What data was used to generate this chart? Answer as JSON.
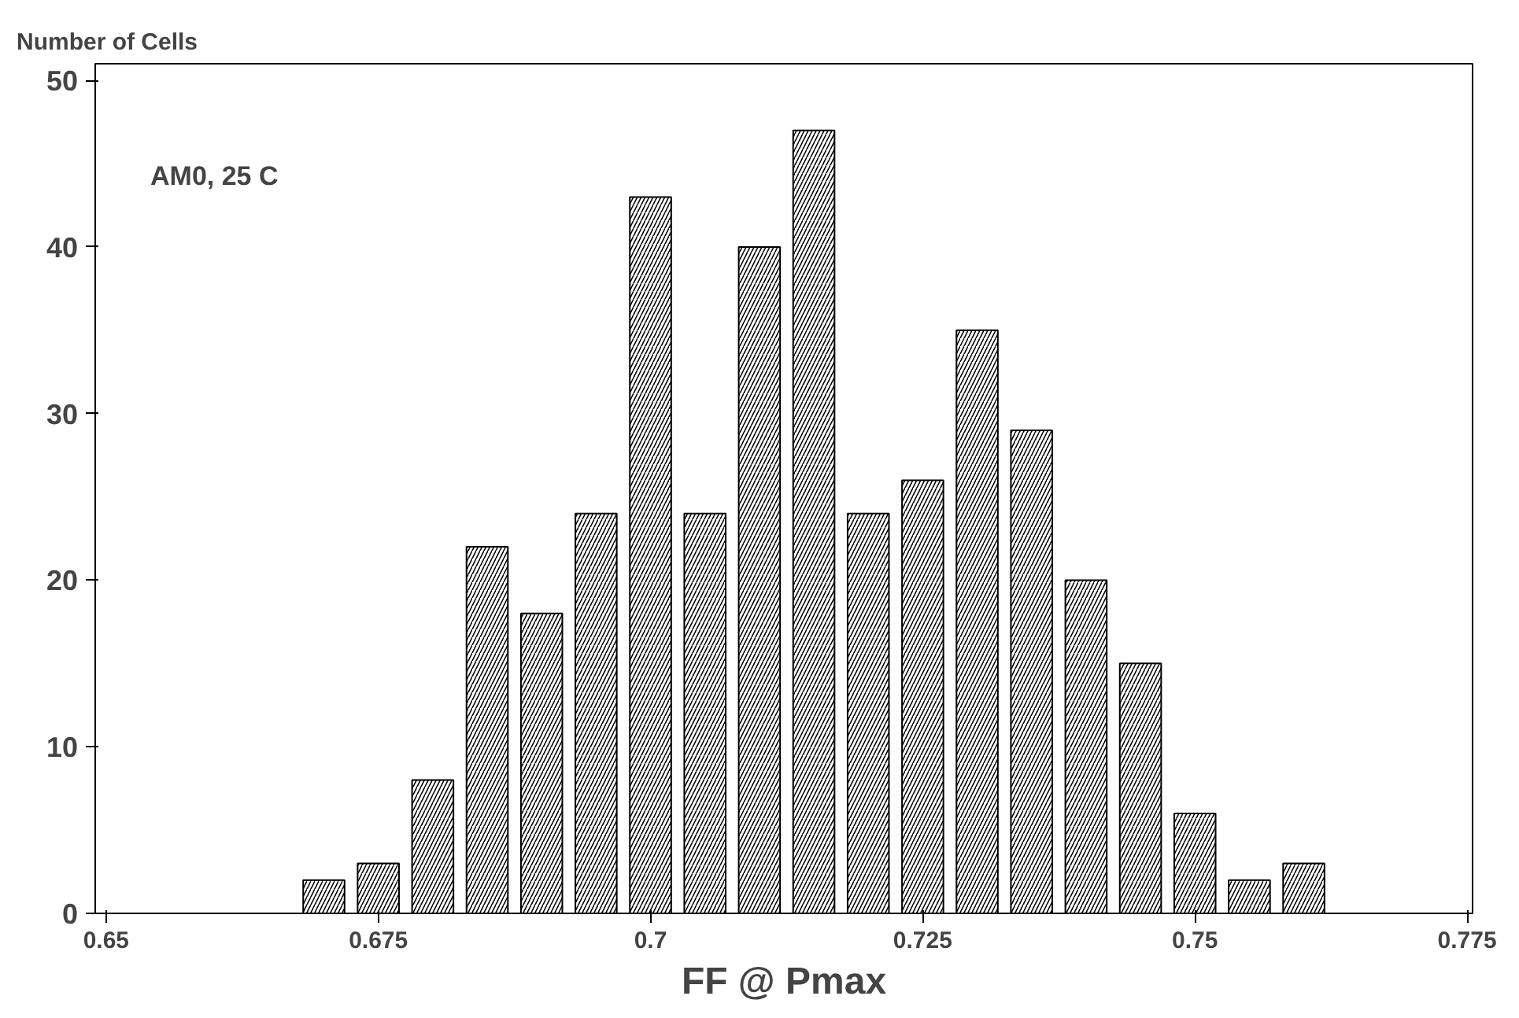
{
  "chart_data": {
    "type": "histogram",
    "xlabel": "FF @ Pmax",
    "ylabel": "Number of Cells",
    "annotations": [
      "AM0, 25 C"
    ],
    "bins": [
      0.6675,
      0.6725,
      0.6775,
      0.6825,
      0.6875,
      0.6925,
      0.6975,
      0.7025,
      0.7075,
      0.7125,
      0.7175,
      0.7225,
      0.7275,
      0.7325,
      0.7375,
      0.7425,
      0.7475,
      0.7525,
      0.7575,
      0.7625
    ],
    "values": [
      2,
      3,
      8,
      22,
      18,
      24,
      43,
      24,
      40,
      47,
      24,
      26,
      35,
      29,
      20,
      15,
      6,
      2,
      3
    ],
    "color": "#ffffff",
    "xlim": [
      0.649,
      0.7755
    ],
    "xticks": [
      0.65,
      0.675,
      0.7,
      0.725,
      0.75,
      0.775
    ],
    "ylim": [
      0,
      51
    ],
    "yticks": [
      0,
      10,
      20,
      30,
      40,
      50
    ],
    "grid": false
  }
}
